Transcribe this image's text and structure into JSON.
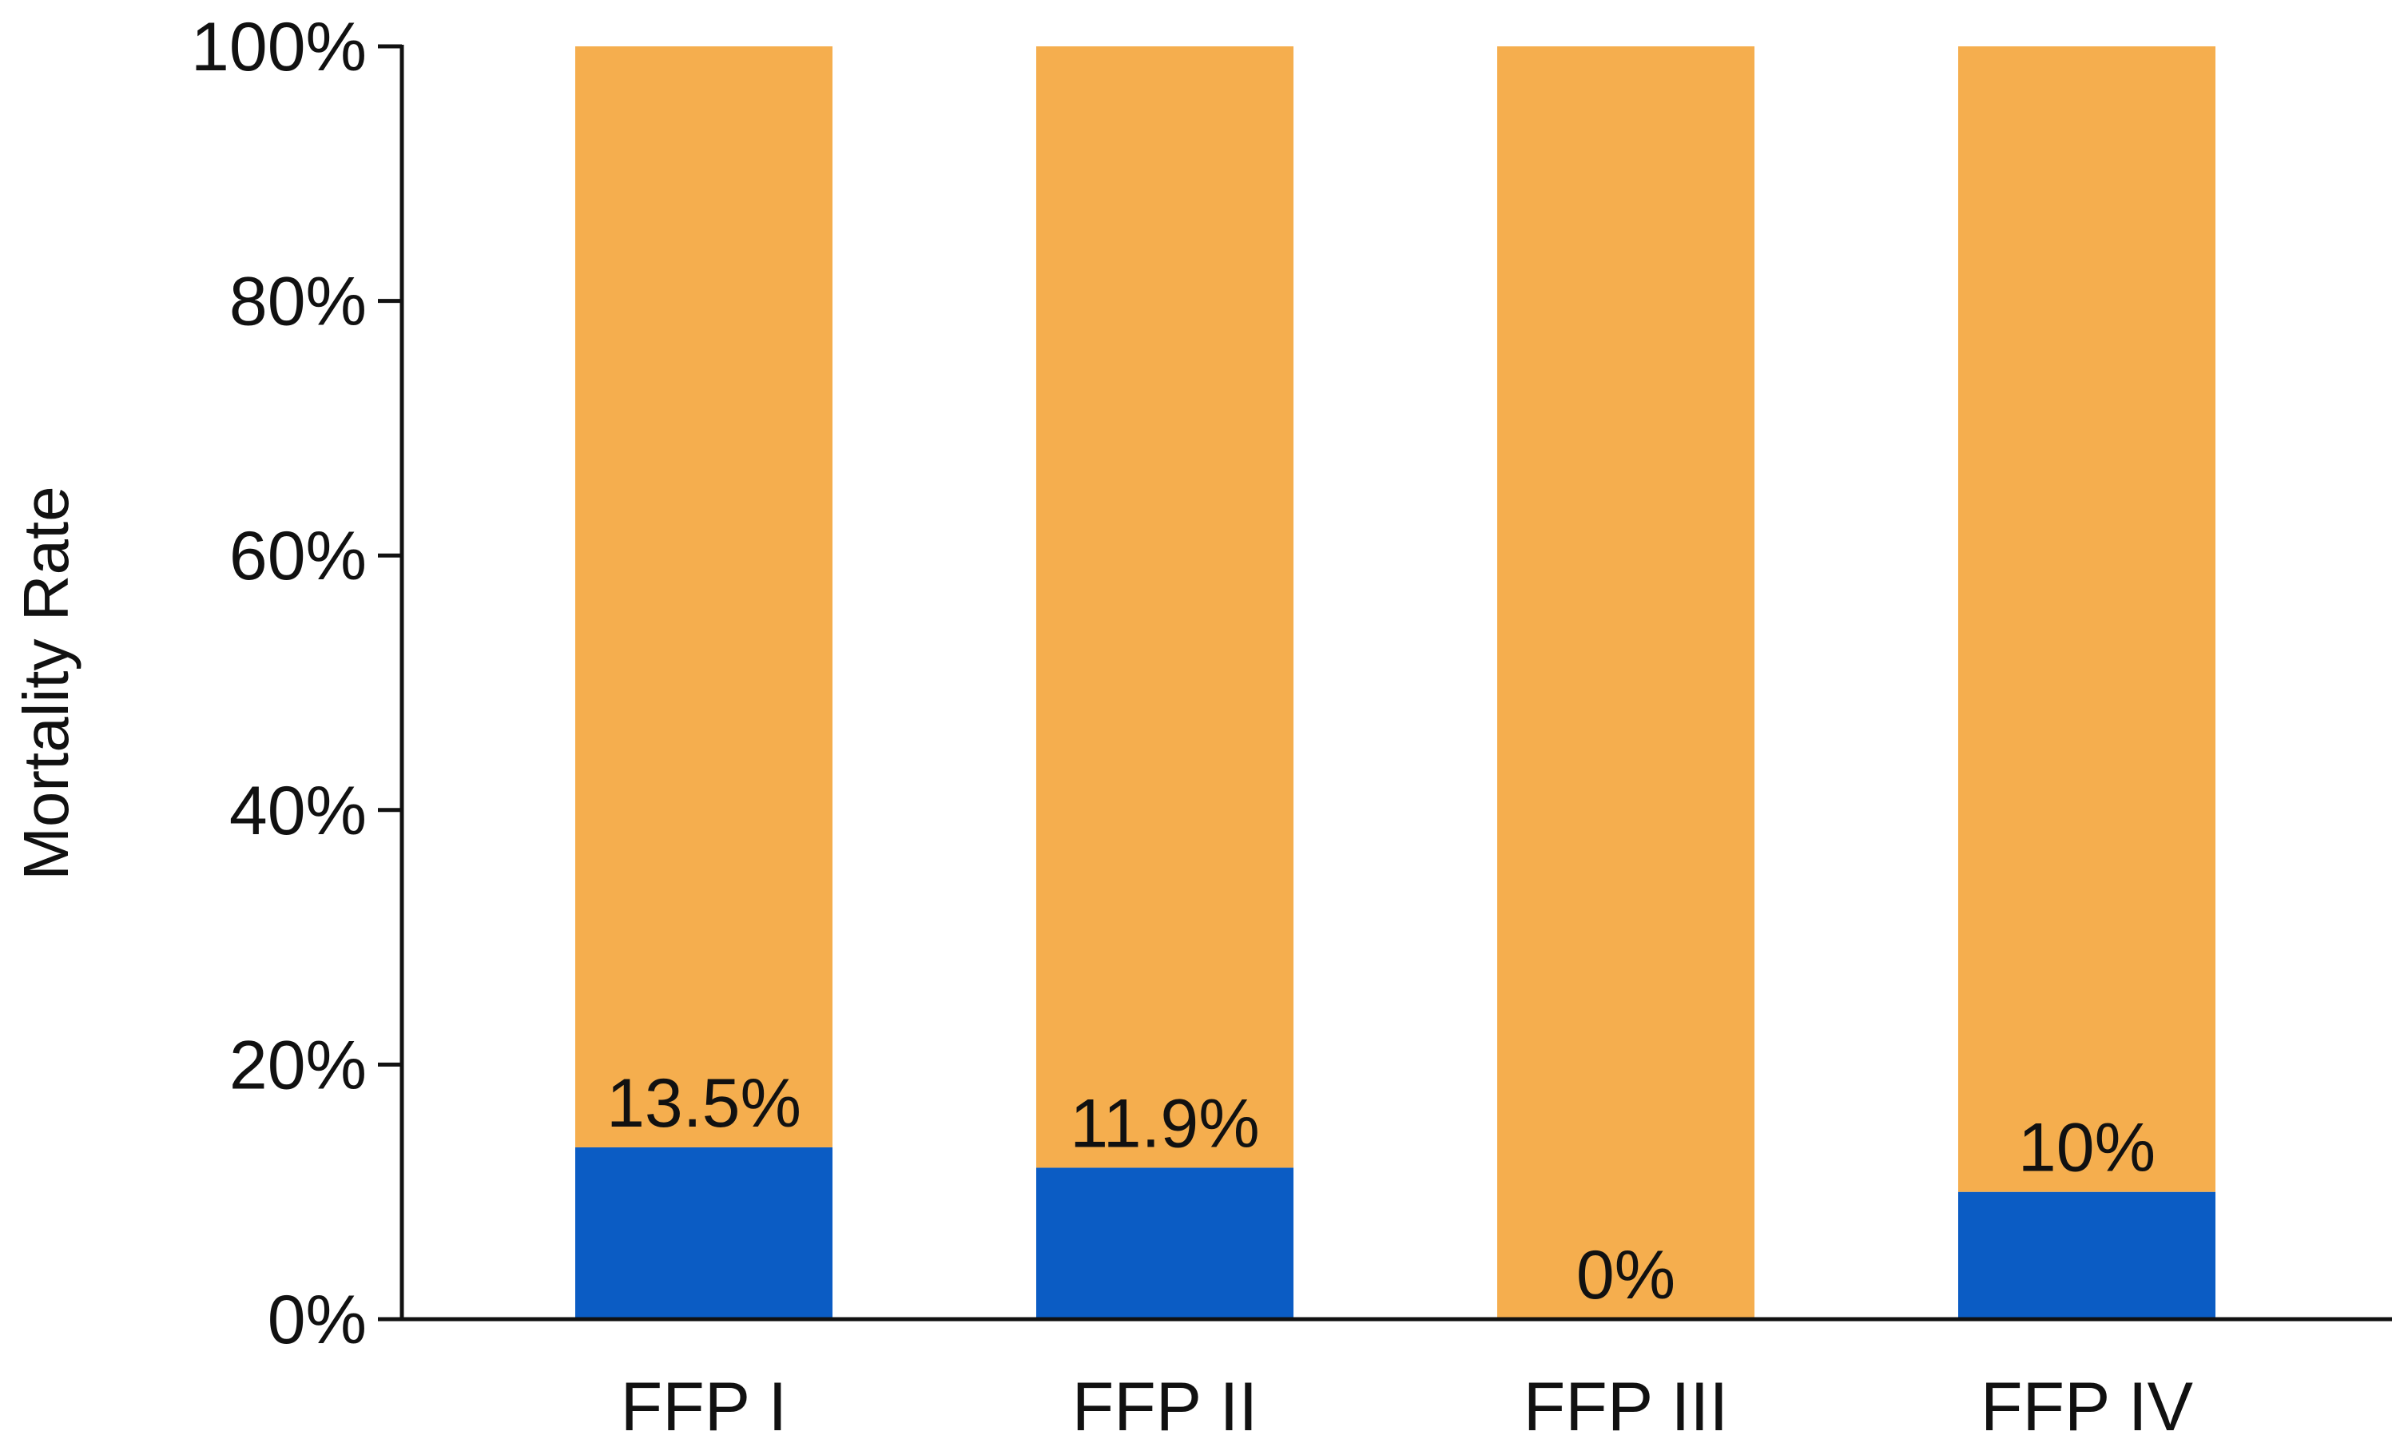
{
  "chart_data": {
    "type": "bar",
    "stacked": true,
    "title": "",
    "xlabel": "",
    "ylabel": "Mortality Rate",
    "ylim": [
      0,
      100
    ],
    "y_ticks": [
      "0%",
      "20%",
      "40%",
      "60%",
      "80%",
      "100%"
    ],
    "y_tick_values": [
      0,
      20,
      40,
      60,
      80,
      100
    ],
    "categories": [
      "FFP I",
      "FFP II",
      "FFP III",
      "FFP IV"
    ],
    "series": [
      {
        "values": [
          13.5,
          11.9,
          0,
          10
        ],
        "color": "#0b5cc4"
      },
      {
        "values": [
          86.5,
          88.1,
          100,
          90
        ],
        "color": "#f5ae4e"
      }
    ],
    "data_labels": [
      "13.5%",
      "11.9%",
      "0%",
      "10%"
    ],
    "grid": false,
    "legend": "none"
  }
}
